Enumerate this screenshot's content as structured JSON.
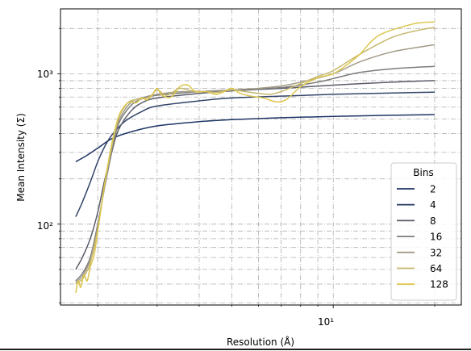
{
  "chart_data": {
    "type": "line",
    "xlabel": "Resolution (Å)",
    "ylabel": "Mean Intensity (Σ)",
    "xscale": "log",
    "yscale": "log",
    "xlim": [
      1.55,
      24
    ],
    "ylim": [
      29,
      2700
    ],
    "x_ticks": [
      {
        "value": 10,
        "label": "10¹"
      }
    ],
    "y_ticks": [
      {
        "value": 100,
        "label": "10²"
      },
      {
        "value": 1000,
        "label": "10³"
      }
    ],
    "grid": true,
    "legend": {
      "title": "Bins",
      "position": "lower-right"
    },
    "series": [
      {
        "name": "2",
        "color": "#1e3566",
        "points": [
          [
            1.72,
            260
          ],
          [
            1.85,
            285
          ],
          [
            2.0,
            320
          ],
          [
            2.2,
            370
          ],
          [
            2.5,
            410
          ],
          [
            3.0,
            450
          ],
          [
            4.0,
            480
          ],
          [
            5.0,
            495
          ],
          [
            7.0,
            510
          ],
          [
            10.0,
            520
          ],
          [
            15.0,
            530
          ],
          [
            20.0,
            535
          ]
        ]
      },
      {
        "name": "4",
        "color": "#34456a",
        "points": [
          [
            1.72,
            112
          ],
          [
            1.8,
            140
          ],
          [
            1.9,
            190
          ],
          [
            2.0,
            260
          ],
          [
            2.1,
            330
          ],
          [
            2.2,
            390
          ],
          [
            2.4,
            480
          ],
          [
            2.7,
            560
          ],
          [
            3.0,
            610
          ],
          [
            4.0,
            660
          ],
          [
            5.0,
            690
          ],
          [
            7.0,
            710
          ],
          [
            10.0,
            730
          ],
          [
            15.0,
            745
          ],
          [
            20.0,
            755
          ]
        ]
      },
      {
        "name": "8",
        "color": "#5a5c6a",
        "points": [
          [
            1.72,
            50
          ],
          [
            1.8,
            60
          ],
          [
            1.9,
            80
          ],
          [
            2.0,
            120
          ],
          [
            2.1,
            200
          ],
          [
            2.2,
            300
          ],
          [
            2.3,
            420
          ],
          [
            2.5,
            560
          ],
          [
            2.7,
            640
          ],
          [
            3.0,
            690
          ],
          [
            4.0,
            740
          ],
          [
            5.0,
            770
          ],
          [
            7.0,
            800
          ],
          [
            10.0,
            840
          ],
          [
            15.0,
            880
          ],
          [
            20.0,
            900
          ]
        ]
      },
      {
        "name": "16",
        "color": "#7d7c7a",
        "points": [
          [
            1.72,
            42
          ],
          [
            1.8,
            47
          ],
          [
            1.9,
            60
          ],
          [
            2.0,
            100
          ],
          [
            2.1,
            180
          ],
          [
            2.2,
            300
          ],
          [
            2.3,
            460
          ],
          [
            2.5,
            610
          ],
          [
            2.7,
            680
          ],
          [
            3.0,
            720
          ],
          [
            4.0,
            760
          ],
          [
            5.0,
            780
          ],
          [
            7.0,
            810
          ],
          [
            9.0,
            880
          ],
          [
            10.0,
            930
          ],
          [
            12.0,
            1020
          ],
          [
            15.0,
            1080
          ],
          [
            20.0,
            1120
          ]
        ]
      },
      {
        "name": "32",
        "color": "#a19a87",
        "points": [
          [
            1.72,
            41
          ],
          [
            1.8,
            45
          ],
          [
            1.9,
            58
          ],
          [
            2.0,
            95
          ],
          [
            2.1,
            185
          ],
          [
            2.2,
            320
          ],
          [
            2.3,
            480
          ],
          [
            2.5,
            640
          ],
          [
            2.7,
            690
          ],
          [
            3.0,
            730
          ],
          [
            3.5,
            760
          ],
          [
            4.0,
            760
          ],
          [
            5.0,
            780
          ],
          [
            6.0,
            800
          ],
          [
            7.0,
            830
          ],
          [
            8.0,
            880
          ],
          [
            10.0,
            1000
          ],
          [
            12.0,
            1200
          ],
          [
            15.0,
            1400
          ],
          [
            20.0,
            1560
          ]
        ]
      },
      {
        "name": "64",
        "color": "#c6b86e",
        "points": [
          [
            1.72,
            40
          ],
          [
            1.8,
            43
          ],
          [
            1.85,
            48
          ],
          [
            1.9,
            55
          ],
          [
            2.0,
            92
          ],
          [
            2.1,
            190
          ],
          [
            2.2,
            330
          ],
          [
            2.3,
            500
          ],
          [
            2.4,
            600
          ],
          [
            2.5,
            660
          ],
          [
            2.7,
            680
          ],
          [
            2.85,
            700
          ],
          [
            3.0,
            780
          ],
          [
            3.2,
            720
          ],
          [
            3.5,
            800
          ],
          [
            3.8,
            770
          ],
          [
            4.2,
            760
          ],
          [
            4.5,
            750
          ],
          [
            5.0,
            780
          ],
          [
            5.5,
            760
          ],
          [
            6.0,
            740
          ],
          [
            6.5,
            730
          ],
          [
            7.0,
            760
          ],
          [
            8.0,
            860
          ],
          [
            9.0,
            960
          ],
          [
            10.0,
            1050
          ],
          [
            12.0,
            1350
          ],
          [
            15.0,
            1750
          ],
          [
            18.0,
            1950
          ],
          [
            20.0,
            2030
          ]
        ]
      },
      {
        "name": "128",
        "color": "#dcc64e",
        "points": [
          [
            1.72,
            35
          ],
          [
            1.75,
            42
          ],
          [
            1.78,
            38
          ],
          [
            1.82,
            46
          ],
          [
            1.86,
            42
          ],
          [
            1.9,
            52
          ],
          [
            1.95,
            62
          ],
          [
            2.0,
            90
          ],
          [
            2.1,
            190
          ],
          [
            2.2,
            340
          ],
          [
            2.3,
            510
          ],
          [
            2.4,
            610
          ],
          [
            2.5,
            650
          ],
          [
            2.6,
            640
          ],
          [
            2.7,
            690
          ],
          [
            2.8,
            670
          ],
          [
            2.9,
            720
          ],
          [
            3.0,
            800
          ],
          [
            3.1,
            720
          ],
          [
            3.3,
            700
          ],
          [
            3.5,
            820
          ],
          [
            3.7,
            840
          ],
          [
            3.9,
            760
          ],
          [
            4.2,
            760
          ],
          [
            4.5,
            730
          ],
          [
            4.8,
            770
          ],
          [
            5.0,
            800
          ],
          [
            5.3,
            740
          ],
          [
            5.7,
            710
          ],
          [
            6.2,
            690
          ],
          [
            6.8,
            650
          ],
          [
            7.3,
            680
          ],
          [
            8.0,
            820
          ],
          [
            9.0,
            940
          ],
          [
            10.0,
            1000
          ],
          [
            11.0,
            1150
          ],
          [
            12.0,
            1350
          ],
          [
            13.0,
            1650
          ],
          [
            14.0,
            1850
          ],
          [
            16.0,
            2050
          ],
          [
            18.0,
            2180
          ],
          [
            20.0,
            2210
          ]
        ]
      }
    ]
  }
}
